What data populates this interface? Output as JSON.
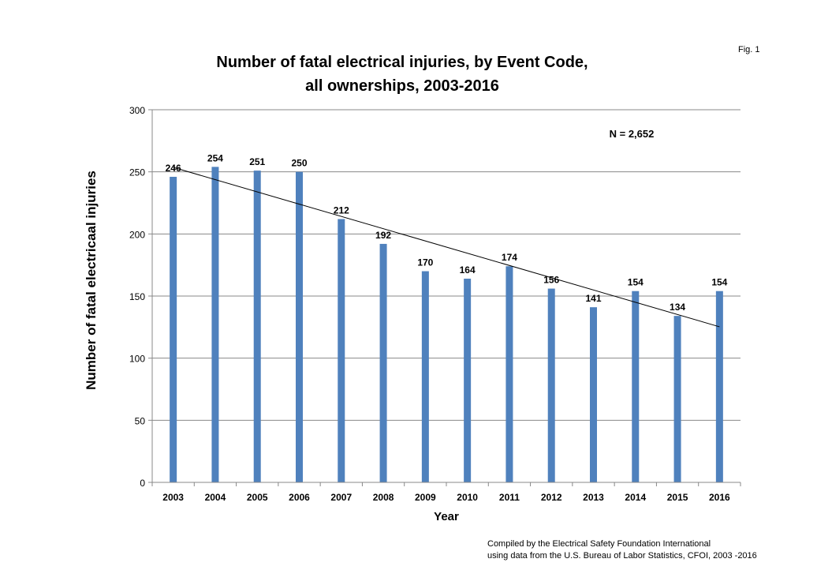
{
  "chart_data": {
    "type": "bar",
    "title_lines": [
      "Number of fatal electrical injuries, by Event Code,",
      "all ownerships, 2003-2016"
    ],
    "xlabel": "Year",
    "ylabel": "Number of fatal electricaal injuries",
    "categories": [
      "2003",
      "2004",
      "2005",
      "2006",
      "2007",
      "2008",
      "2009",
      "2010",
      "2011",
      "2012",
      "2013",
      "2014",
      "2015",
      "2016"
    ],
    "values": [
      246,
      254,
      251,
      250,
      212,
      192,
      170,
      164,
      174,
      156,
      141,
      154,
      134,
      154
    ],
    "ylim": [
      0,
      300
    ],
    "yticks": [
      0,
      50,
      100,
      150,
      200,
      250,
      300
    ],
    "grid": true,
    "trendline": "linear",
    "annotation": "N = 2,652",
    "bar_color": "#4f81bd",
    "legend": "none"
  },
  "fig_label": "Fig. 1",
  "credit": [
    "Compiled by the Electrical Safety Foundation International",
    "using data from the U.S. Bureau of Labor Statistics, CFOI, 2003 -2016"
  ]
}
